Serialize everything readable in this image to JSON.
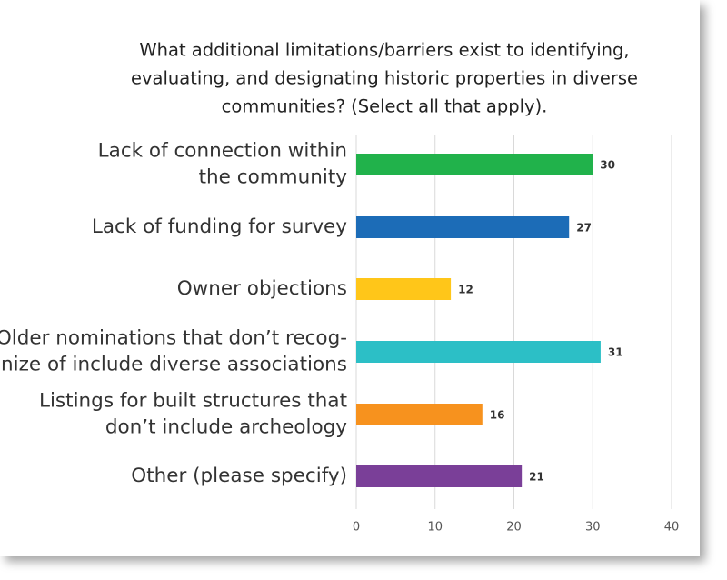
{
  "chart_data": {
    "type": "bar",
    "orientation": "horizontal",
    "title": [
      "What additional limitations/barriers exist to identifying,",
      "evaluating, and designating historic properties in diverse",
      "communities? (Select all that apply)."
    ],
    "categories": [
      [
        "Lack of connection within",
        "the community"
      ],
      [
        "Lack of funding for survey"
      ],
      [
        "Owner objections"
      ],
      [
        "Older nominations that don’t recog-",
        "nize of include diverse associations"
      ],
      [
        "Listings for built structures that",
        "don’t include archeology"
      ],
      [
        "Other (please specify)"
      ]
    ],
    "values": [
      30,
      27,
      12,
      31,
      16,
      21
    ],
    "colors": [
      "#21b24b",
      "#1c6cb7",
      "#ffc619",
      "#2cbfc6",
      "#f7921e",
      "#7a3f98"
    ],
    "xlim": [
      0,
      40
    ],
    "xticks": [
      0,
      10,
      20,
      30,
      40
    ],
    "grid": true
  }
}
